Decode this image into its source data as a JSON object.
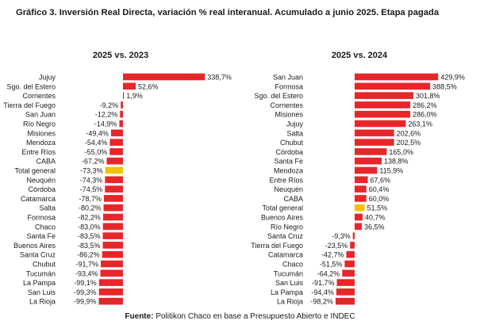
{
  "title": "Gráfico 3. Inversión Real Directa, variación % real interanual. Acumulado a junio 2025. Etapa pagada",
  "source": {
    "label": "Fuente:",
    "text": "Politikon Chaco en base a Presupuesto Abierto e INDEC"
  },
  "colors": {
    "bar": "#e8262a",
    "highlight": "#f2c200",
    "text": "#1a1a1a"
  },
  "chart_data": [
    {
      "type": "bar",
      "orientation": "horizontal",
      "title": "2025 vs. 2023",
      "highlight_category": "Total general",
      "categories": [
        "Jujuy",
        "Sgo. del Estero",
        "Corrientes",
        "Tierra del Fuego",
        "San Juan",
        "Río Negro",
        "Misiones",
        "Mendoza",
        "Entre Ríos",
        "CABA",
        "Total general",
        "Neuquén",
        "Córdoba",
        "Catamarca",
        "Salta",
        "Formosa",
        "Chaco",
        "Santa Fe",
        "Buenos Aires",
        "Santa Cruz",
        "Chubut",
        "Tucumán",
        "La Pampa",
        "San Luis",
        "La Rioja"
      ],
      "values": [
        338.7,
        52.6,
        1.9,
        -9.2,
        -12.2,
        -14.9,
        -49.4,
        -54.4,
        -55.0,
        -67.2,
        -73.3,
        -74.3,
        -74.5,
        -78.7,
        -80.2,
        -82.2,
        -83.0,
        -83.5,
        -83.5,
        -86.2,
        -91.7,
        -93.4,
        -99.1,
        -99.3,
        -99.9
      ],
      "labels": [
        "338,7%",
        "52,6%",
        "1,9%",
        "-9,2%",
        "-12,2%",
        "-14,9%",
        "-49,4%",
        "-54,4%",
        "-55,0%",
        "-67,2%",
        "-73,3%",
        "-74,3%",
        "-74,5%",
        "-78,7%",
        "-80,2%",
        "-82,2%",
        "-83,0%",
        "-83,5%",
        "-83,5%",
        "-86,2%",
        "-91,7%",
        "-93,4%",
        "-99,1%",
        "-99,3%",
        "-99,9%"
      ]
    },
    {
      "type": "bar",
      "orientation": "horizontal",
      "title": "2025 vs. 2024",
      "highlight_category": "Total general",
      "categories": [
        "San Juan",
        "Formosa",
        "Sgo. del Estero",
        "Corrientes",
        "Misiones",
        "Jujuy",
        "Salta",
        "Chubut",
        "Córdoba",
        "Santa Fe",
        "Mendoza",
        "Entre Ríos",
        "Neuquén",
        "CABA",
        "Total general",
        "Buenos Aires",
        "Río Negro",
        "Santa Cruz",
        "Tierra del Fuego",
        "Catamarca",
        "Chaco",
        "Tucumán",
        "San Luis",
        "La Pampa",
        "La Rioja"
      ],
      "values": [
        429.9,
        388.5,
        301.8,
        286.2,
        286.0,
        263.1,
        202.6,
        202.5,
        165.0,
        138.8,
        115.9,
        67.6,
        60.4,
        60.0,
        51.5,
        40.7,
        36.5,
        -9.3,
        -23.5,
        -42.7,
        -51.5,
        -64.2,
        -91.7,
        -94.4,
        -98.2
      ],
      "labels": [
        "429,9%",
        "388,5%",
        "301,8%",
        "286,2%",
        "286,0%",
        "263,1%",
        "202,6%",
        "202,5%",
        "165,0%",
        "138,8%",
        "115,9%",
        "67,6%",
        "60,4%",
        "60,0%",
        "51,5%",
        "40,7%",
        "36,5%",
        "-9,3%",
        "-23,5%",
        "-42,7%",
        "-51,5%",
        "-64,2%",
        "-91,7%",
        "-94,4%",
        "-98,2%"
      ]
    }
  ]
}
